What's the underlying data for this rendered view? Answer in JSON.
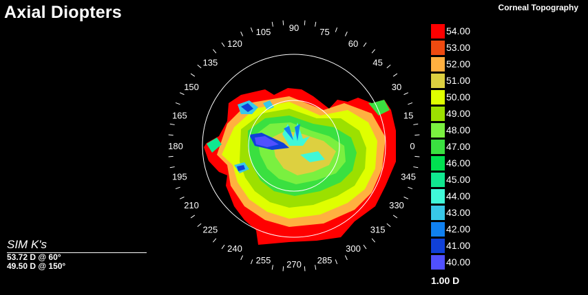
{
  "title": "Axial Diopters",
  "subtitle": "Corneal Topography",
  "angle_labels": [
    "0",
    "15",
    "30",
    "45",
    "60",
    "75",
    "90",
    "105",
    "120",
    "135",
    "150",
    "165",
    "180",
    "195",
    "210",
    "225",
    "240",
    "255",
    "270",
    "285",
    "300",
    "315",
    "330",
    "345"
  ],
  "legend": {
    "step": "1.00 D",
    "items": [
      {
        "label": "54.00",
        "color": "#ff0000"
      },
      {
        "label": "53.00",
        "color": "#ef4a10"
      },
      {
        "label": "52.00",
        "color": "#ffb040"
      },
      {
        "label": "51.00",
        "color": "#ddd040"
      },
      {
        "label": "50.00",
        "color": "#dfff00"
      },
      {
        "label": "49.00",
        "color": "#9ce000"
      },
      {
        "label": "48.00",
        "color": "#7af040"
      },
      {
        "label": "47.00",
        "color": "#3ae040"
      },
      {
        "label": "46.00",
        "color": "#00e050"
      },
      {
        "label": "45.00",
        "color": "#10e890"
      },
      {
        "label": "44.00",
        "color": "#40f8d8"
      },
      {
        "label": "43.00",
        "color": "#38c8e8"
      },
      {
        "label": "42.00",
        "color": "#1080f0"
      },
      {
        "label": "41.00",
        "color": "#1040d8"
      },
      {
        "label": "40.00",
        "color": "#5050ff"
      }
    ]
  },
  "sim_k": {
    "title": "SIM K's",
    "lines": [
      "53.72 D @ 60°",
      "49.50 D @ 150°"
    ]
  }
}
